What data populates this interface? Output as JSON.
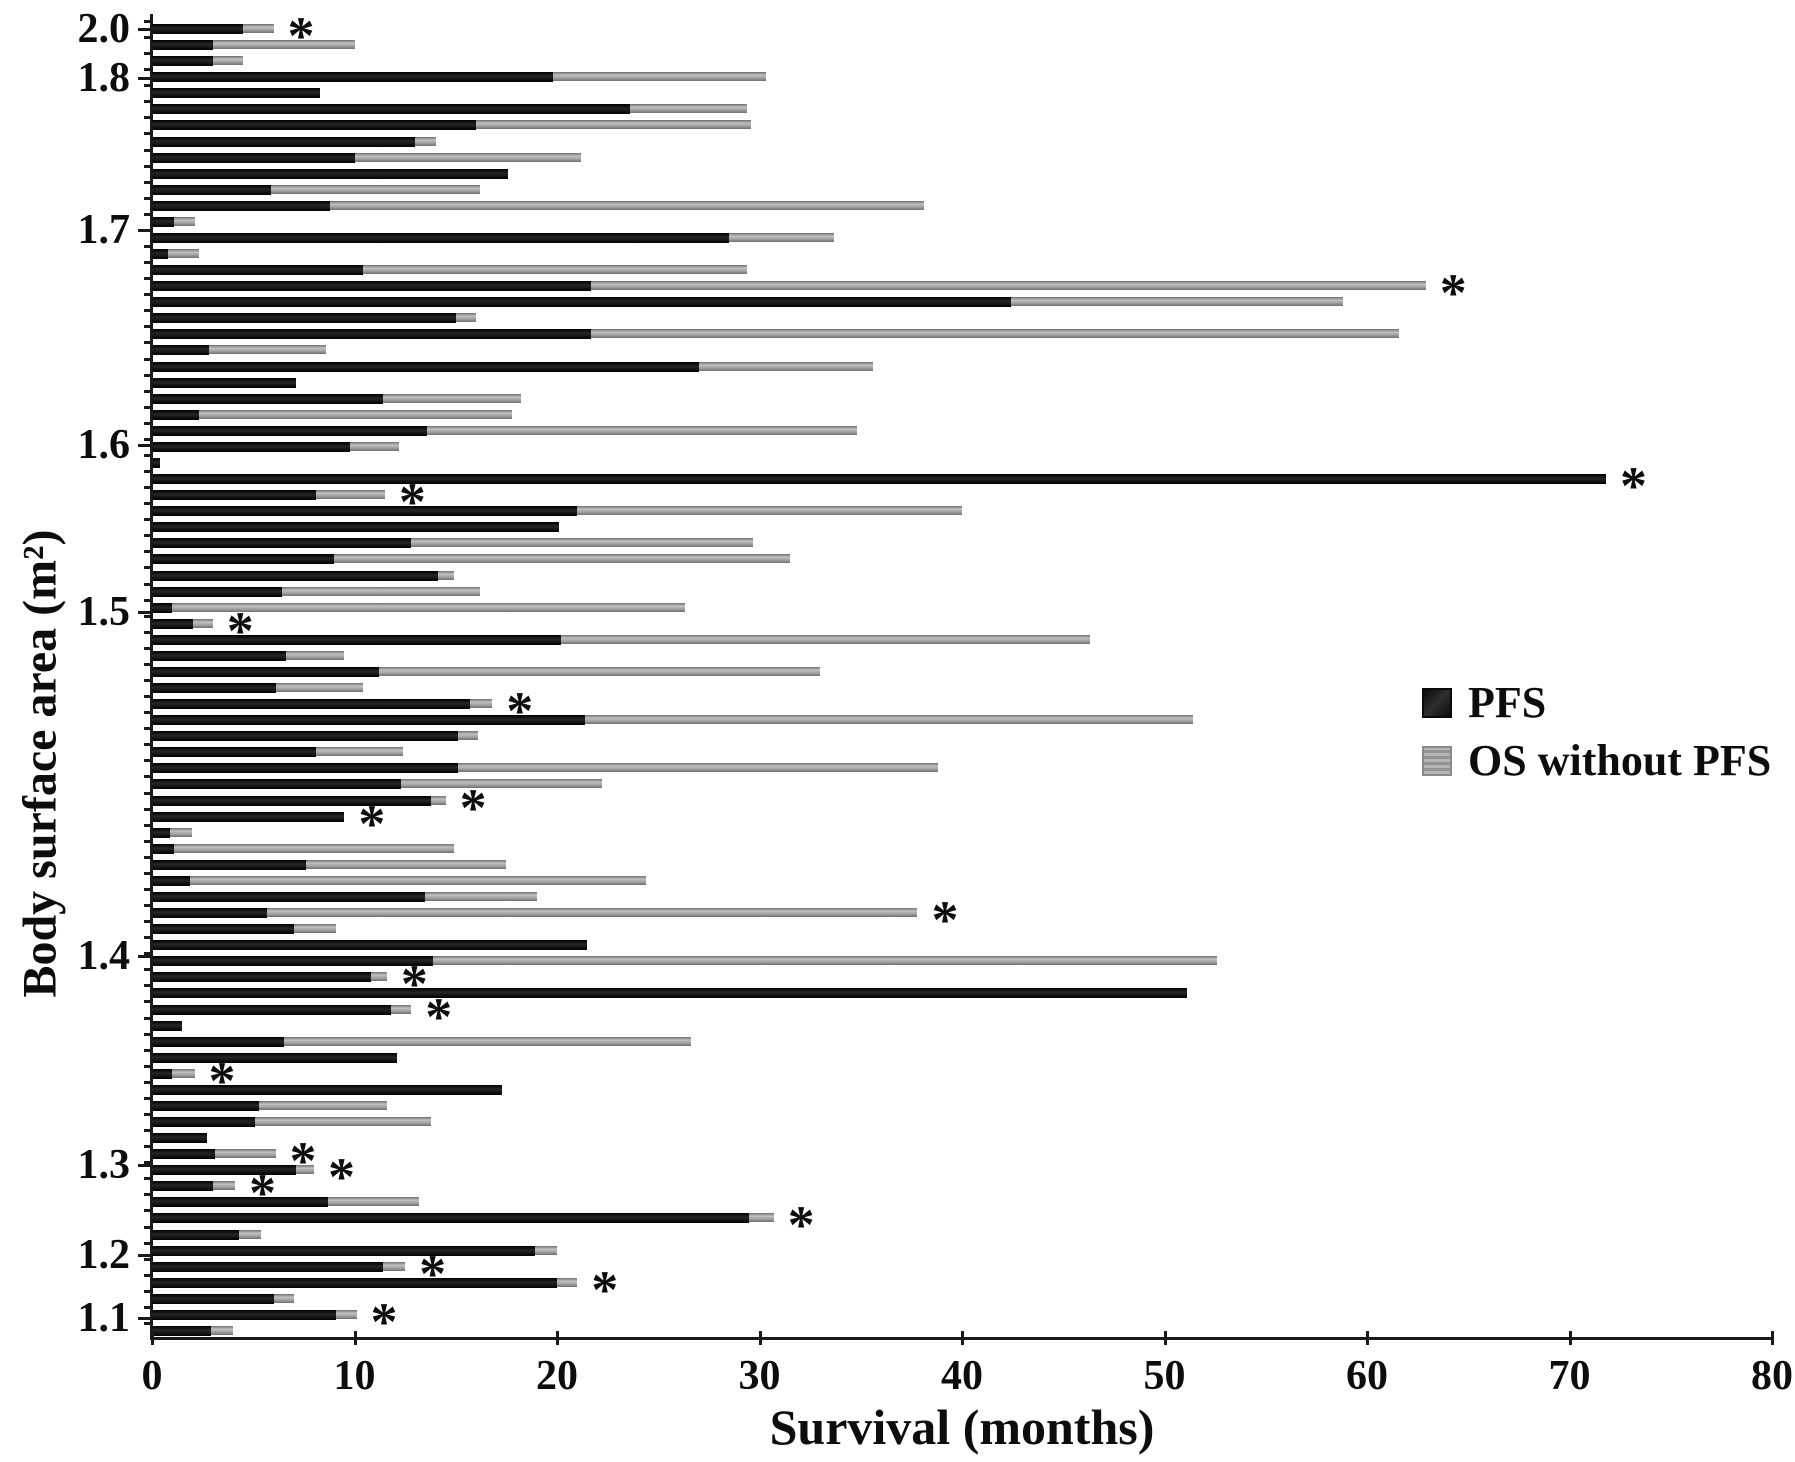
{
  "figure": {
    "x_axis_title": "Survival (months)",
    "y_axis_title": "Body surface area (m²)"
  },
  "chart_data": {
    "type": "bar",
    "orientation": "horizontal",
    "stacked": true,
    "title": "",
    "xlabel": "Survival (months)",
    "ylabel": "Body surface area (m²)",
    "xlim": [
      0,
      80
    ],
    "grid": false,
    "legend_position": "middle-right",
    "sig_marker": "*",
    "sig_marker_meaning": "annotated bar",
    "x_ticks": [
      "0",
      "10",
      "20",
      "30",
      "40",
      "50",
      "60",
      "70",
      "80"
    ],
    "y_tick_labels": [
      {
        "label": "2.0",
        "row": 0.0
      },
      {
        "label": "1.8",
        "row": 3.05
      },
      {
        "label": "1.7",
        "row": 12.5
      },
      {
        "label": "1.6",
        "row": 25.9
      },
      {
        "label": "1.5",
        "row": 36.3
      },
      {
        "label": "1.4",
        "row": 57.7
      },
      {
        "label": "1.3",
        "row": 70.7
      },
      {
        "label": "1.2",
        "row": 76.3
      },
      {
        "label": "1.1",
        "row": 80.2
      }
    ],
    "legend": [
      {
        "name": "PFS",
        "color": "#161616"
      },
      {
        "name": "OS without PFS",
        "color": "#a3a3a3"
      }
    ],
    "units": "months",
    "bars_note": "each bar = one patient, ordered by decreasing body surface area; pfs = dark segment length, os = additional gray segment length (OS without PFS), sig = asterisk annotation",
    "bars": [
      {
        "pfs": 4.5,
        "os": 1.5,
        "sig": true
      },
      {
        "pfs": 3.0,
        "os": 7.0,
        "sig": false
      },
      {
        "pfs": 3.0,
        "os": 1.5,
        "sig": false
      },
      {
        "pfs": 19.8,
        "os": 10.5,
        "sig": false
      },
      {
        "pfs": 8.3,
        "os": 0,
        "sig": false
      },
      {
        "pfs": 23.6,
        "os": 5.8,
        "sig": false
      },
      {
        "pfs": 16.0,
        "os": 13.6,
        "sig": false
      },
      {
        "pfs": 13.0,
        "os": 1.0,
        "sig": false
      },
      {
        "pfs": 10.0,
        "os": 11.2,
        "sig": false
      },
      {
        "pfs": 17.6,
        "os": 0,
        "sig": false
      },
      {
        "pfs": 5.9,
        "os": 10.3,
        "sig": false
      },
      {
        "pfs": 8.8,
        "os": 29.3,
        "sig": false
      },
      {
        "pfs": 1.1,
        "os": 1.0,
        "sig": false
      },
      {
        "pfs": 28.5,
        "os": 5.2,
        "sig": false
      },
      {
        "pfs": 0.8,
        "os": 1.5,
        "sig": false
      },
      {
        "pfs": 10.4,
        "os": 19.0,
        "sig": false
      },
      {
        "pfs": 21.7,
        "os": 41.2,
        "sig": true
      },
      {
        "pfs": 42.4,
        "os": 16.4,
        "sig": false
      },
      {
        "pfs": 15.0,
        "os": 1.0,
        "sig": false
      },
      {
        "pfs": 21.7,
        "os": 39.9,
        "sig": false
      },
      {
        "pfs": 2.8,
        "os": 5.8,
        "sig": false
      },
      {
        "pfs": 27.0,
        "os": 8.6,
        "sig": false
      },
      {
        "pfs": 7.1,
        "os": 0,
        "sig": false
      },
      {
        "pfs": 11.4,
        "os": 6.8,
        "sig": false
      },
      {
        "pfs": 2.3,
        "os": 15.5,
        "sig": false
      },
      {
        "pfs": 13.6,
        "os": 21.2,
        "sig": false
      },
      {
        "pfs": 9.8,
        "os": 2.4,
        "sig": false
      },
      {
        "pfs": 0.4,
        "os": 0,
        "sig": false
      },
      {
        "pfs": 71.8,
        "os": 0,
        "sig": true
      },
      {
        "pfs": 8.1,
        "os": 3.4,
        "sig": true
      },
      {
        "pfs": 21.0,
        "os": 19.0,
        "sig": false
      },
      {
        "pfs": 20.1,
        "os": 0,
        "sig": false
      },
      {
        "pfs": 12.8,
        "os": 16.9,
        "sig": false
      },
      {
        "pfs": 9.0,
        "os": 22.5,
        "sig": false
      },
      {
        "pfs": 14.1,
        "os": 0.8,
        "sig": false
      },
      {
        "pfs": 6.4,
        "os": 9.8,
        "sig": false
      },
      {
        "pfs": 1.0,
        "os": 25.3,
        "sig": false
      },
      {
        "pfs": 2.0,
        "os": 1.0,
        "sig": true
      },
      {
        "pfs": 20.2,
        "os": 26.1,
        "sig": false
      },
      {
        "pfs": 6.6,
        "os": 2.9,
        "sig": false
      },
      {
        "pfs": 11.2,
        "os": 21.8,
        "sig": false
      },
      {
        "pfs": 6.1,
        "os": 4.3,
        "sig": false
      },
      {
        "pfs": 15.7,
        "os": 1.1,
        "sig": true
      },
      {
        "pfs": 21.4,
        "os": 30.0,
        "sig": false
      },
      {
        "pfs": 15.1,
        "os": 1.0,
        "sig": false
      },
      {
        "pfs": 8.1,
        "os": 4.3,
        "sig": false
      },
      {
        "pfs": 15.1,
        "os": 23.7,
        "sig": false
      },
      {
        "pfs": 12.3,
        "os": 9.9,
        "sig": false
      },
      {
        "pfs": 13.8,
        "os": 0.7,
        "sig": true
      },
      {
        "pfs": 9.5,
        "os": 0,
        "sig": true
      },
      {
        "pfs": 0.9,
        "os": 1.1,
        "sig": false
      },
      {
        "pfs": 1.1,
        "os": 13.8,
        "sig": false
      },
      {
        "pfs": 7.6,
        "os": 9.9,
        "sig": false
      },
      {
        "pfs": 1.9,
        "os": 22.5,
        "sig": false
      },
      {
        "pfs": 13.5,
        "os": 5.5,
        "sig": false
      },
      {
        "pfs": 5.7,
        "os": 32.1,
        "sig": true
      },
      {
        "pfs": 7.0,
        "os": 2.1,
        "sig": false
      },
      {
        "pfs": 21.5,
        "os": 0,
        "sig": false
      },
      {
        "pfs": 13.9,
        "os": 38.7,
        "sig": false
      },
      {
        "pfs": 10.8,
        "os": 0.8,
        "sig": true
      },
      {
        "pfs": 51.1,
        "os": 0,
        "sig": false
      },
      {
        "pfs": 11.8,
        "os": 1.0,
        "sig": true
      },
      {
        "pfs": 1.5,
        "os": 0,
        "sig": false
      },
      {
        "pfs": 6.5,
        "os": 20.1,
        "sig": false
      },
      {
        "pfs": 12.1,
        "os": 0,
        "sig": false
      },
      {
        "pfs": 1.0,
        "os": 1.1,
        "sig": true
      },
      {
        "pfs": 17.3,
        "os": 0,
        "sig": false
      },
      {
        "pfs": 5.3,
        "os": 6.3,
        "sig": false
      },
      {
        "pfs": 5.1,
        "os": 8.7,
        "sig": false
      },
      {
        "pfs": 2.7,
        "os": 0,
        "sig": false
      },
      {
        "pfs": 3.1,
        "os": 3.0,
        "sig": true
      },
      {
        "pfs": 7.1,
        "os": 0.9,
        "sig": true
      },
      {
        "pfs": 3.0,
        "os": 1.1,
        "sig": true
      },
      {
        "pfs": 8.7,
        "os": 4.5,
        "sig": false
      },
      {
        "pfs": 29.5,
        "os": 1.2,
        "sig": true
      },
      {
        "pfs": 4.3,
        "os": 1.1,
        "sig": false
      },
      {
        "pfs": 18.9,
        "os": 1.1,
        "sig": false
      },
      {
        "pfs": 11.4,
        "os": 1.1,
        "sig": true
      },
      {
        "pfs": 20.0,
        "os": 1.0,
        "sig": true
      },
      {
        "pfs": 6.0,
        "os": 1.0,
        "sig": false
      },
      {
        "pfs": 9.1,
        "os": 1.0,
        "sig": true
      },
      {
        "pfs": 2.9,
        "os": 1.1,
        "sig": false
      }
    ]
  }
}
